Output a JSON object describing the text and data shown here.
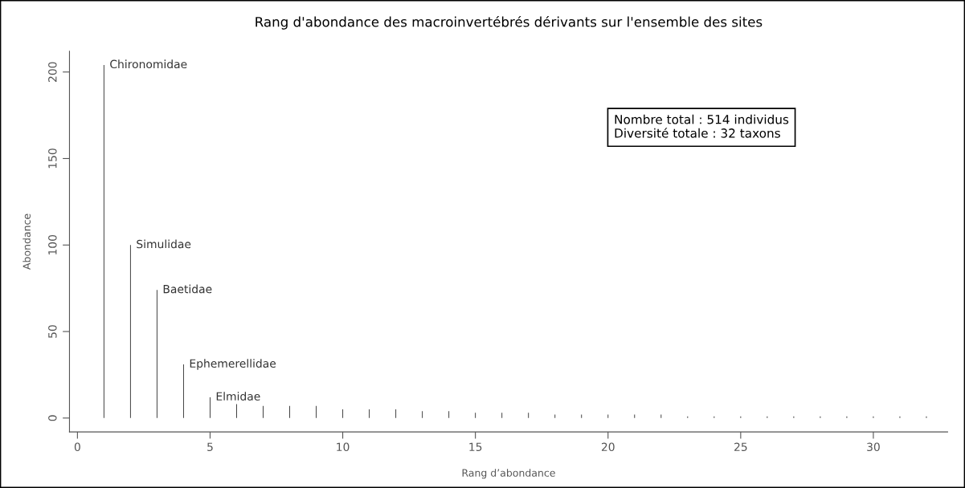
{
  "chart_data": {
    "type": "bar",
    "title": "Rang d'abondance des macroinvertébrés dérivants sur l'ensemble des sites",
    "xlabel": "Rang d’abondance",
    "ylabel": "Abondance",
    "x": [
      1,
      2,
      3,
      4,
      5,
      6,
      7,
      8,
      9,
      10,
      11,
      12,
      13,
      14,
      15,
      16,
      17,
      18,
      19,
      20,
      21,
      22,
      23,
      24,
      25,
      26,
      27,
      28,
      29,
      30,
      31,
      32
    ],
    "values": [
      204,
      100,
      74,
      31,
      12,
      8,
      7,
      7,
      7,
      5,
      5,
      5,
      4,
      4,
      3,
      3,
      3,
      2,
      2,
      2,
      2,
      2,
      1,
      1,
      1,
      1,
      1,
      1,
      1,
      1,
      1,
      1
    ],
    "color": "#404040",
    "xlim": [
      -0.3,
      32.8
    ],
    "xticks": [
      0,
      5,
      10,
      15,
      20,
      25,
      30
    ],
    "ylim": [
      -8,
      212
    ],
    "yticks": [
      0,
      50,
      100,
      150,
      200
    ],
    "grid": false,
    "legend": false,
    "annotations": [
      {
        "text": "Chironomidae",
        "x": 1,
        "y": 204
      },
      {
        "text": "Simulidae",
        "x": 2,
        "y": 100
      },
      {
        "text": "Baetidae",
        "x": 3,
        "y": 74
      },
      {
        "text": "Ephemerellidae",
        "x": 4,
        "y": 31
      },
      {
        "text": "Elmidae",
        "x": 5,
        "y": 12
      },
      "Nombre total : 514 individus\nDiversité totale : 32 taxons"
    ]
  }
}
